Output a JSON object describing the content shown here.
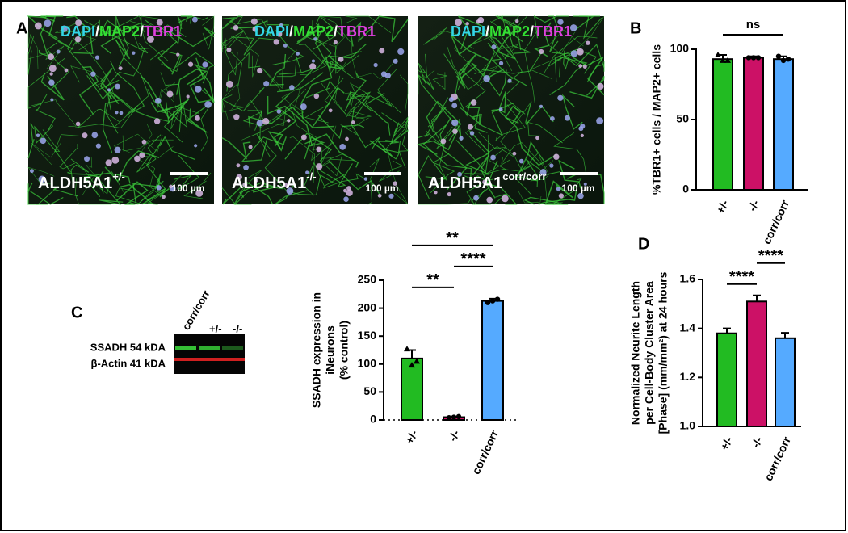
{
  "panel_labels": [
    "A",
    "B",
    "C",
    "D"
  ],
  "images": [
    {
      "stain": [
        {
          "text": "DAPI",
          "color": "#33d6e6"
        },
        {
          "text": "/",
          "color": "#ffffff"
        },
        {
          "text": "MAP2",
          "color": "#33e033"
        },
        {
          "text": "/",
          "color": "#ffffff"
        },
        {
          "text": "TBR1",
          "color": "#e040e0"
        }
      ],
      "genotype": "ALDH5A1",
      "genotype_sup": "+/-",
      "scale_bar": "100 µm"
    },
    {
      "stain": [
        {
          "text": "DAPI",
          "color": "#33d6e6"
        },
        {
          "text": "/",
          "color": "#ffffff"
        },
        {
          "text": "MAP2",
          "color": "#33e033"
        },
        {
          "text": "/",
          "color": "#ffffff"
        },
        {
          "text": "TBR1",
          "color": "#e040e0"
        }
      ],
      "genotype": "ALDH5A1",
      "genotype_sup": "-/-",
      "scale_bar": "100 µm"
    },
    {
      "stain": [
        {
          "text": "DAPI",
          "color": "#33d6e6"
        },
        {
          "text": "/",
          "color": "#ffffff"
        },
        {
          "text": "MAP2",
          "color": "#33e033"
        },
        {
          "text": "/",
          "color": "#ffffff"
        },
        {
          "text": "TBR1",
          "color": "#e040e0"
        }
      ],
      "genotype": "ALDH5A1",
      "genotype_sup": "corr/corr",
      "scale_bar": "100 µm"
    }
  ],
  "blot": {
    "lanes": [
      "corr/corr",
      "+/-",
      "-/-"
    ],
    "bands": [
      "SSADH 54 kDA",
      "β-Actin 41 kDA"
    ]
  },
  "chart_data": [
    {
      "type": "bar",
      "y_label": [
        "%TBR1+ cells / MAP2+ cells"
      ],
      "categories": [
        "+/-",
        "-/-",
        "corr/corr"
      ],
      "values": [
        93,
        94,
        93
      ],
      "errors": [
        3,
        1,
        2
      ],
      "colors": [
        "#22bb22",
        "#cc1166",
        "#55aaff"
      ],
      "points": [
        [
          96,
          92,
          92
        ],
        [
          94,
          94,
          94
        ],
        [
          95,
          92,
          93
        ]
      ],
      "ylim": [
        0,
        100
      ],
      "yticks": [
        0,
        50,
        100
      ],
      "annotations": [
        {
          "text": "ns",
          "between": [
            0,
            2
          ]
        }
      ]
    },
    {
      "type": "bar",
      "y_label": [
        "SSADH expression in",
        "iNeurons",
        "(% control)"
      ],
      "categories": [
        "+/-",
        "-/-",
        "corr/corr"
      ],
      "values": [
        110,
        5,
        213
      ],
      "errors": [
        15,
        1,
        4
      ],
      "colors": [
        "#22bb22",
        "#cc1166",
        "#55aaff"
      ],
      "points": [
        [
          127,
          98,
          105
        ],
        [
          4,
          5,
          6
        ],
        [
          210,
          213,
          216
        ]
      ],
      "ylim": [
        0,
        250
      ],
      "yticks": [
        0,
        50,
        100,
        150,
        200,
        250
      ],
      "baseline_dotted": true,
      "annotations": [
        {
          "text": "**",
          "between": [
            0,
            1
          ]
        },
        {
          "text": "****",
          "between": [
            1,
            2
          ]
        },
        {
          "text": "**",
          "between": [
            0,
            2
          ]
        }
      ]
    },
    {
      "type": "bar",
      "y_label": [
        "Normalized Neurite Length",
        "per Cell-Body Cluster Area",
        "[Phase] (mm/mm²) at 24 hours"
      ],
      "categories": [
        "+/-",
        "-/-",
        "corr/corr"
      ],
      "values": [
        1.38,
        1.51,
        1.36
      ],
      "errors": [
        0.02,
        0.025,
        0.022
      ],
      "colors": [
        "#22bb22",
        "#cc1166",
        "#55aaff"
      ],
      "ylim": [
        1.0,
        1.6
      ],
      "yticks": [
        {
          "value": 1.0,
          "label": "1.0"
        },
        1.2,
        1.4,
        1.6
      ],
      "annotations": [
        {
          "text": "****",
          "between": [
            0,
            1
          ]
        },
        {
          "text": "****",
          "between": [
            1,
            2
          ]
        }
      ]
    }
  ]
}
